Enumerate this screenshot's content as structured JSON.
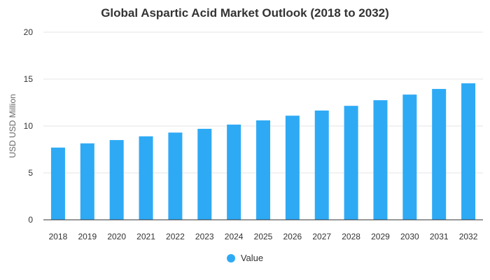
{
  "chart_data": {
    "type": "bar",
    "title": "Global Aspartic Acid Market Outlook (2018 to 2032)",
    "xlabel": "",
    "ylabel": "USD USD Million",
    "categories": [
      "2018",
      "2019",
      "2020",
      "2021",
      "2022",
      "2023",
      "2024",
      "2025",
      "2026",
      "2027",
      "2028",
      "2029",
      "2030",
      "2031",
      "2032"
    ],
    "series": [
      {
        "name": "Value",
        "color": "#2eaaf5",
        "values": [
          7.7,
          8.15,
          8.5,
          8.9,
          9.3,
          9.7,
          10.15,
          10.6,
          11.1,
          11.65,
          12.15,
          12.75,
          13.35,
          13.95,
          14.55
        ]
      }
    ],
    "ylim": [
      0,
      20
    ],
    "yticks": [
      0,
      5,
      10,
      15,
      20
    ],
    "grid": true,
    "legend_position": "bottom-center"
  }
}
